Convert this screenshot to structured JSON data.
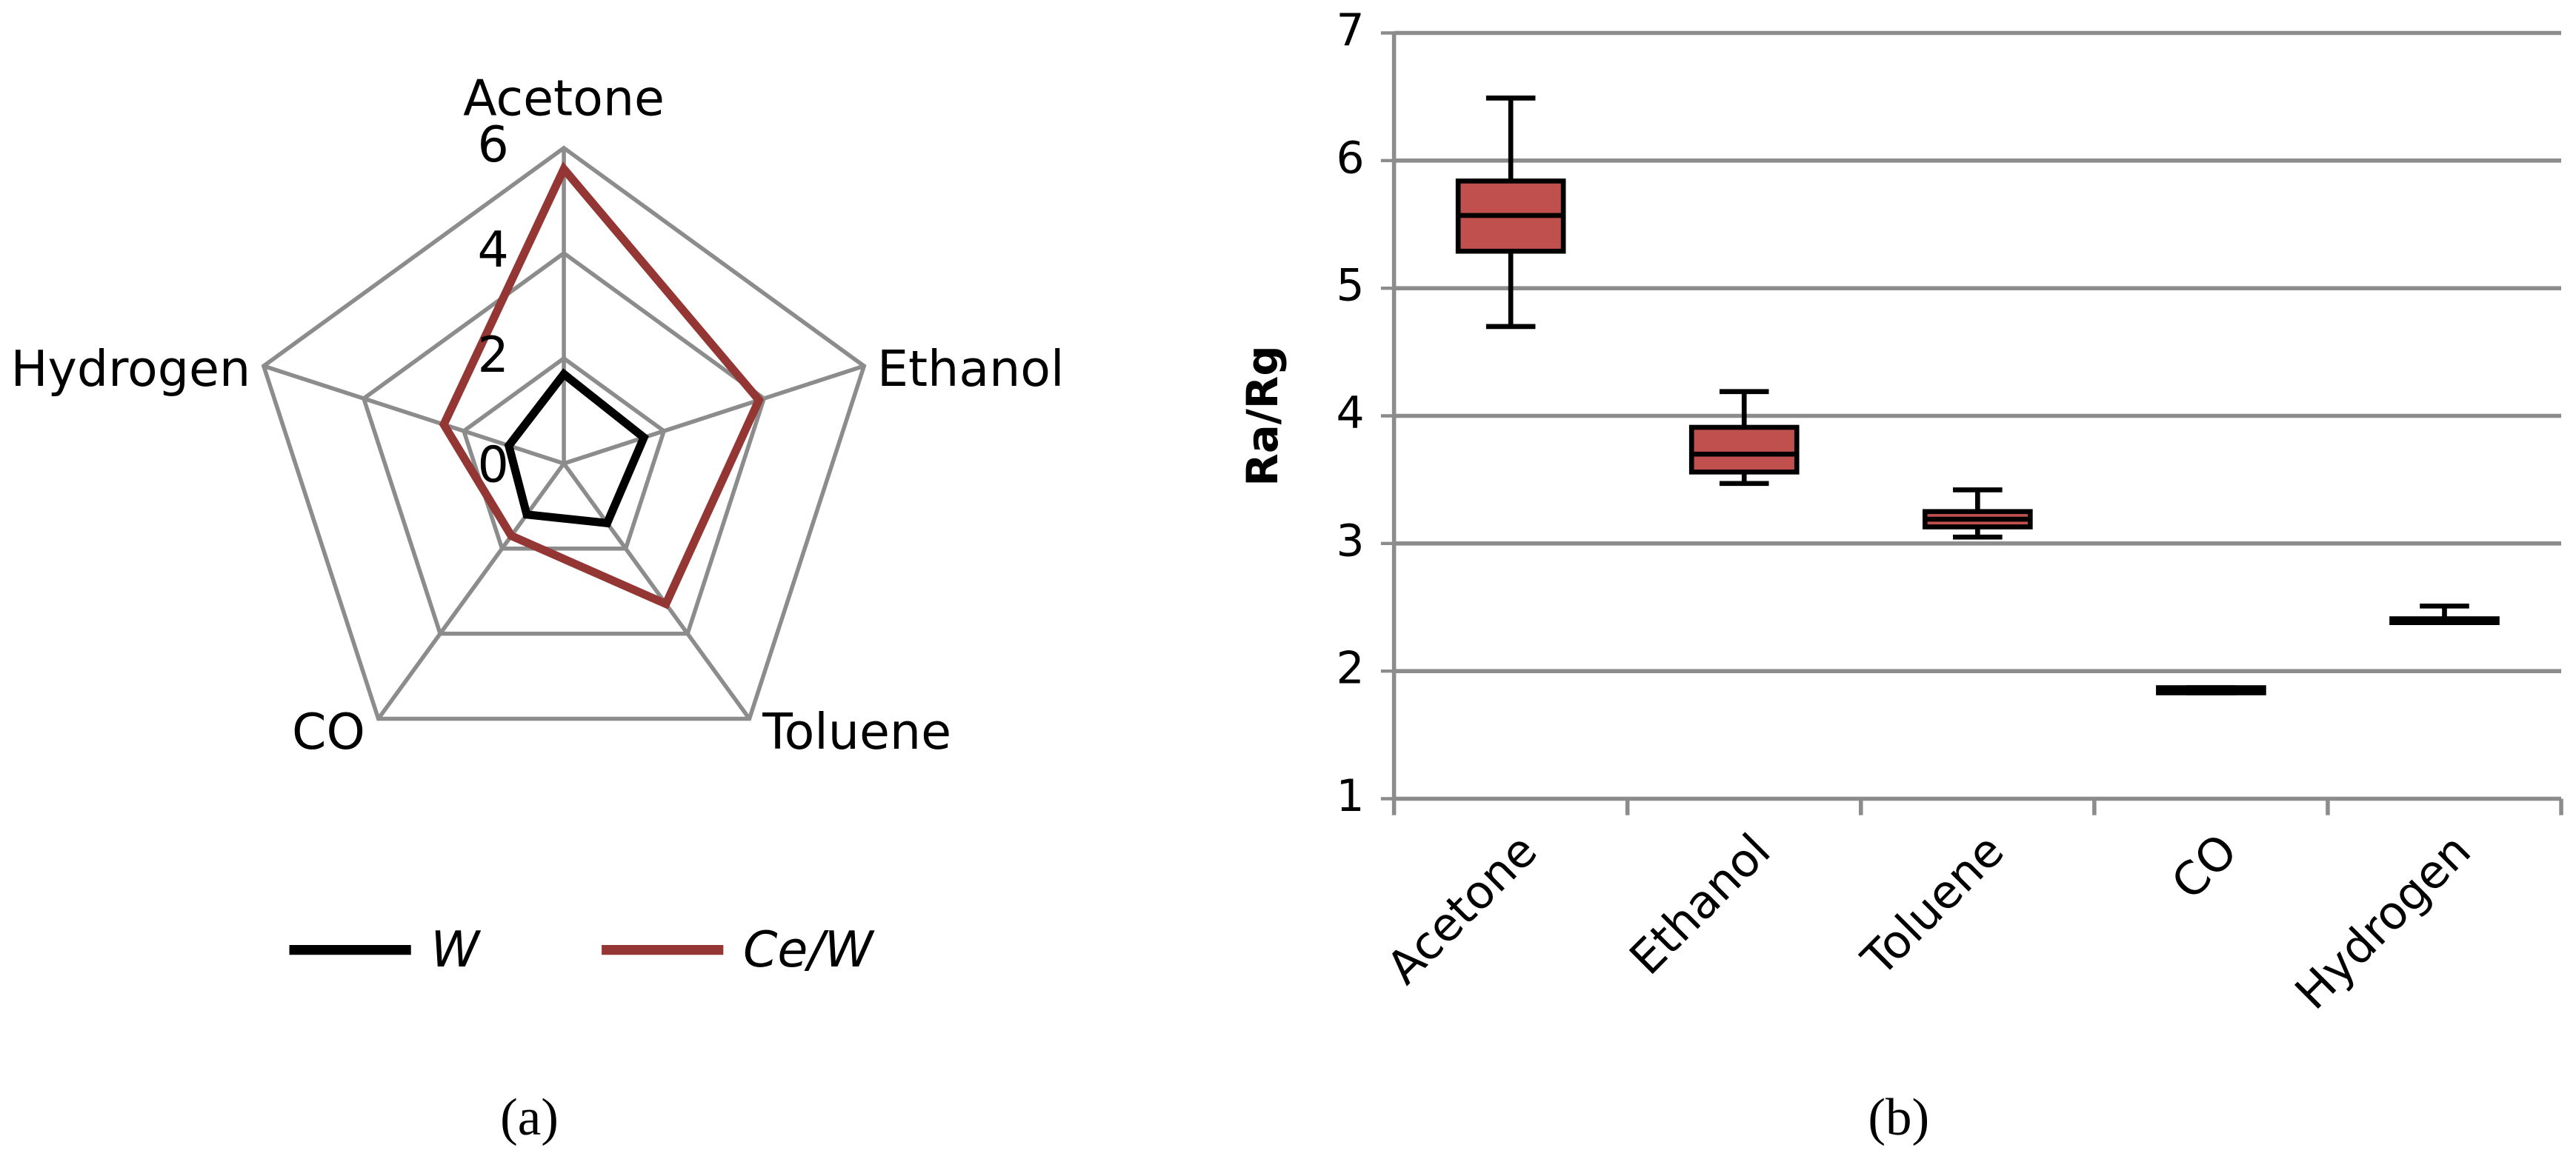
{
  "chart_data": [
    {
      "type": "radar",
      "caption": "(a)",
      "categories": [
        "Acetone",
        "Ethanol",
        "Toluene",
        "CO",
        "Hydrogen"
      ],
      "rlim": [
        0,
        6
      ],
      "rticks": [
        0,
        2,
        4,
        6
      ],
      "grid": true,
      "legend": "bottom",
      "series": [
        {
          "name": "W",
          "color": "#000000",
          "values": [
            1.7,
            1.6,
            1.4,
            1.2,
            1.1
          ]
        },
        {
          "name": "Ce/W",
          "color": "#943634",
          "values": [
            5.6,
            3.9,
            3.3,
            1.7,
            2.4
          ]
        }
      ]
    },
    {
      "type": "box",
      "caption": "(b)",
      "ylabel": "Ra/Rg",
      "categories": [
        "Acetone",
        "Ethanol",
        "Toluene",
        "CO",
        "Hydrogen"
      ],
      "ylim": [
        1,
        7
      ],
      "yticks": [
        1,
        2,
        3,
        4,
        5,
        6,
        7
      ],
      "grid": true,
      "color": "#c0504d",
      "min": [
        4.7,
        3.47,
        3.05,
        1.83,
        2.38
      ],
      "q1": [
        5.29,
        3.56,
        3.13,
        1.83,
        2.38
      ],
      "median": [
        5.57,
        3.7,
        3.19,
        1.85,
        2.4
      ],
      "q3": [
        5.84,
        3.91,
        3.25,
        1.87,
        2.41
      ],
      "max": [
        6.49,
        4.19,
        3.42,
        1.87,
        2.51
      ]
    }
  ]
}
